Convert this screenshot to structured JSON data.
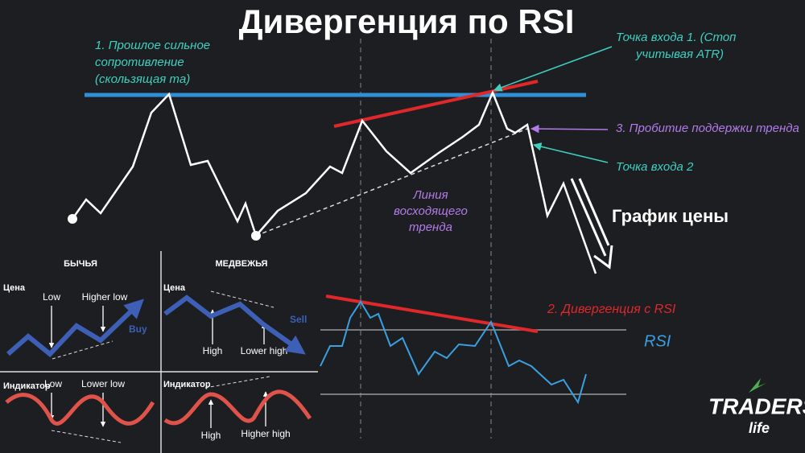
{
  "title": "Дивергенция по RSI",
  "price_chart": {
    "resistance_note": [
      "1. Прошлое сильное",
      "сопротивление",
      "(скользящая ma)"
    ],
    "entry_point_1": [
      "Точка входа 1. (Стоп",
      "учитывая ATR)"
    ],
    "trend_break": "3. Пробитие поддержки тренда",
    "entry_point_2": "Точка входа 2",
    "trend_line_label": [
      "Линия",
      "восходящего",
      "тренда"
    ],
    "label": "График цены"
  },
  "rsi_chart": {
    "divergence_note": "2. Дивергенция с RSI",
    "label": "RSI"
  },
  "examples": {
    "bullish": {
      "title": "БЫЧЬЯ",
      "price_label": "Цена",
      "price_points": [
        "Low",
        "Higher low"
      ],
      "signal": "Buy",
      "indicator_label": "Индикатор",
      "indicator_points": [
        "Low",
        "Lower low"
      ]
    },
    "bearish": {
      "title": "МЕДВЕЖЬЯ",
      "price_label": "Цена",
      "price_points": [
        "High",
        "Lower high"
      ],
      "signal": "Sell",
      "indicator_label": "Индикатор",
      "indicator_points": [
        "High",
        "Higher high"
      ]
    }
  },
  "logo": {
    "brand": "TRADERS",
    "sub": "life"
  }
}
